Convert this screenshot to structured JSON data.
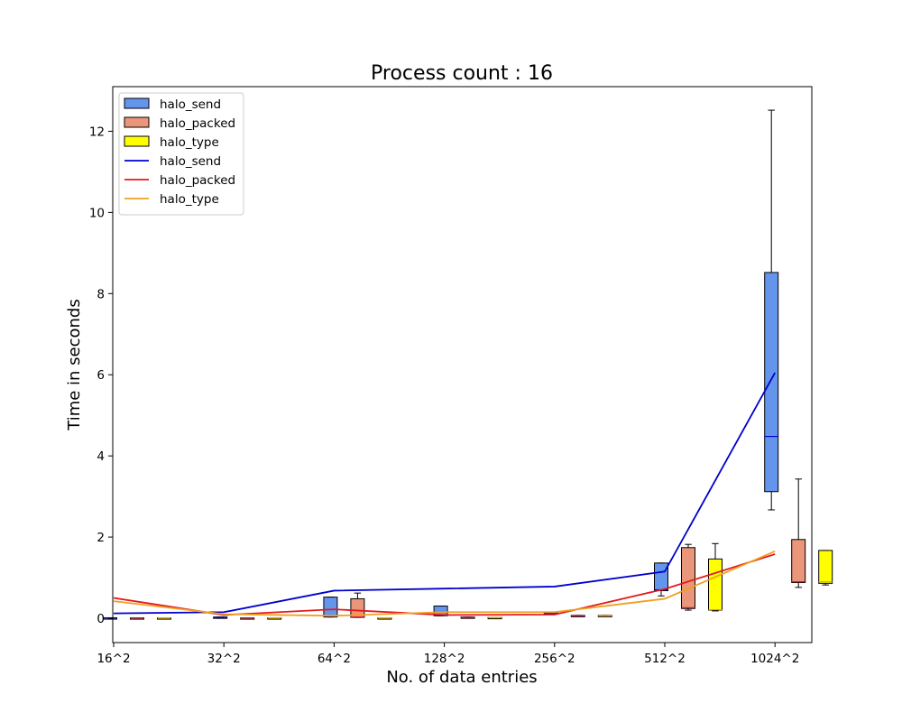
{
  "chart_data": {
    "type": "box",
    "title": "Process count : 16",
    "xlabel": "No. of data entries",
    "ylabel": "Time in seconds",
    "categories": [
      "16^2",
      "32^2",
      "64^2",
      "128^2",
      "256^2",
      "512^2",
      "1024^2"
    ],
    "ylim": [
      -0.6,
      13.1
    ],
    "yticks": [
      0,
      2,
      4,
      6,
      8,
      10,
      12
    ],
    "legend_position": "top-left",
    "box_series": [
      {
        "name": "halo_send",
        "color": "#6495ED",
        "median_color": "#0000CD",
        "boxes": [
          {
            "category": "16^2",
            "whislo": 0.01,
            "q1": 0.01,
            "med": 0.01,
            "q3": 0.01,
            "whishi": 0.01
          },
          {
            "category": "32^2",
            "whislo": 0.02,
            "q1": 0.02,
            "med": 0.02,
            "q3": 0.03,
            "whishi": 0.03
          },
          {
            "category": "64^2",
            "whislo": 0.03,
            "q1": 0.03,
            "med": 0.05,
            "q3": 0.52,
            "whishi": 0.52
          },
          {
            "category": "128^2",
            "whislo": 0.06,
            "q1": 0.06,
            "med": 0.08,
            "q3": 0.3,
            "whishi": 0.3
          },
          {
            "category": "256^2",
            "whislo": 0.1,
            "q1": 0.1,
            "med": 0.11,
            "q3": 0.14,
            "whishi": 0.14
          },
          {
            "category": "512^2",
            "whislo": 0.55,
            "q1": 0.68,
            "med": 0.7,
            "q3": 1.36,
            "whishi": 1.36
          },
          {
            "category": "1024^2",
            "whislo": 2.67,
            "q1": 3.12,
            "med": 4.48,
            "q3": 8.52,
            "whishi": 12.52
          }
        ]
      },
      {
        "name": "halo_packed",
        "color": "#E9967A",
        "median_color": "#DC143C",
        "boxes": [
          {
            "category": "16^2",
            "whislo": 0.0,
            "q1": 0.0,
            "med": 0.01,
            "q3": 0.01,
            "whishi": 0.01
          },
          {
            "category": "32^2",
            "whislo": 0.0,
            "q1": 0.0,
            "med": 0.01,
            "q3": 0.01,
            "whishi": 0.01
          },
          {
            "category": "64^2",
            "whislo": 0.02,
            "q1": 0.02,
            "med": 0.03,
            "q3": 0.48,
            "whishi": 0.62
          },
          {
            "category": "128^2",
            "whislo": 0.02,
            "q1": 0.02,
            "med": 0.02,
            "q3": 0.03,
            "whishi": 0.03
          },
          {
            "category": "256^2",
            "whislo": 0.05,
            "q1": 0.05,
            "med": 0.06,
            "q3": 0.07,
            "whishi": 0.07
          },
          {
            "category": "512^2",
            "whislo": 0.2,
            "q1": 0.24,
            "med": 0.26,
            "q3": 1.74,
            "whishi": 1.82
          },
          {
            "category": "1024^2",
            "whislo": 0.76,
            "q1": 0.88,
            "med": 0.9,
            "q3": 1.94,
            "whishi": 3.43
          }
        ]
      },
      {
        "name": "halo_type",
        "color": "#FFFF00",
        "median_color": "#F0A020",
        "boxes": [
          {
            "category": "16^2",
            "whislo": 0.0,
            "q1": 0.0,
            "med": 0.01,
            "q3": 0.01,
            "whishi": 0.01
          },
          {
            "category": "32^2",
            "whislo": 0.0,
            "q1": 0.0,
            "med": 0.01,
            "q3": 0.01,
            "whishi": 0.01
          },
          {
            "category": "64^2",
            "whislo": 0.0,
            "q1": 0.0,
            "med": 0.01,
            "q3": 0.01,
            "whishi": 0.01
          },
          {
            "category": "128^2",
            "whislo": 0.01,
            "q1": 0.01,
            "med": 0.02,
            "q3": 0.02,
            "whishi": 0.02
          },
          {
            "category": "256^2",
            "whislo": 0.05,
            "q1": 0.05,
            "med": 0.06,
            "q3": 0.07,
            "whishi": 0.07
          },
          {
            "category": "512^2",
            "whislo": 0.18,
            "q1": 0.2,
            "med": 0.21,
            "q3": 1.46,
            "whishi": 1.84
          },
          {
            "category": "1024^2",
            "whislo": 0.82,
            "q1": 0.86,
            "med": 0.9,
            "q3": 1.67,
            "whishi": 1.67
          }
        ]
      }
    ],
    "line_series": [
      {
        "name": "halo_send",
        "color": "#0000CD",
        "x": [
          0,
          1,
          2,
          3,
          4,
          5,
          6
        ],
        "values": [
          0.12,
          0.15,
          0.68,
          0.73,
          0.78,
          1.15,
          6.05
        ]
      },
      {
        "name": "halo_packed",
        "color": "#E31A1C",
        "x": [
          0,
          1,
          2,
          3,
          4,
          5,
          6
        ],
        "values": [
          0.5,
          0.08,
          0.22,
          0.08,
          0.09,
          0.72,
          1.58
        ]
      },
      {
        "name": "halo_type",
        "color": "#F0A020",
        "x": [
          0,
          1,
          2,
          3,
          4,
          5,
          6
        ],
        "values": [
          0.42,
          0.1,
          0.06,
          0.15,
          0.15,
          0.48,
          1.65
        ]
      }
    ]
  }
}
